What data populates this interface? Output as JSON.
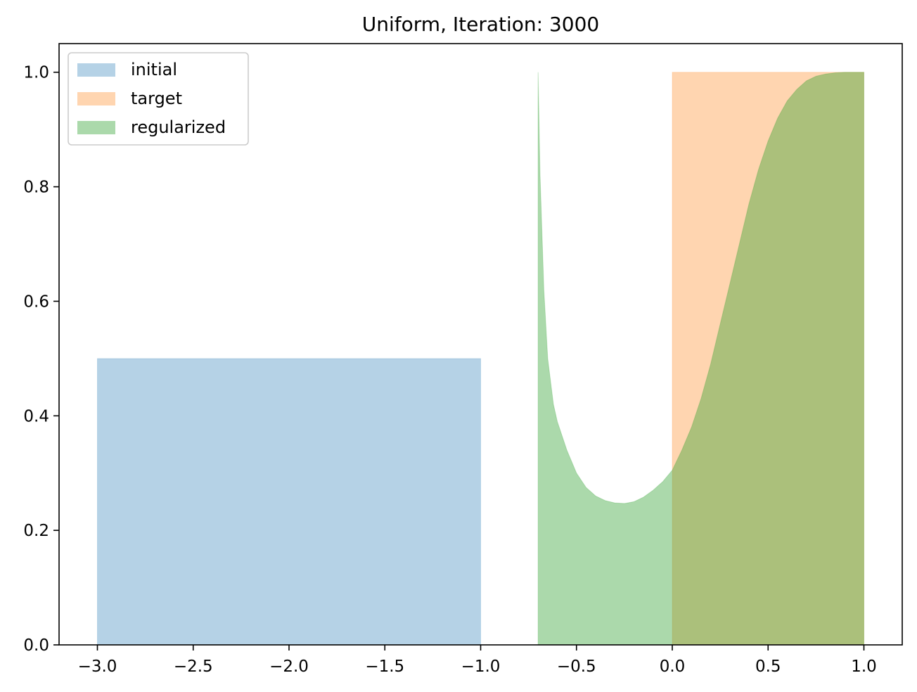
{
  "chart_data": {
    "type": "area",
    "title": "Uniform, Iteration: 3000",
    "xlabel": "",
    "ylabel": "",
    "xlim": [
      -3.2,
      1.2
    ],
    "ylim": [
      0,
      1.05
    ],
    "xticks": [
      -3.0,
      -2.5,
      -2.0,
      -1.5,
      -1.0,
      -0.5,
      0.0,
      0.5,
      1.0
    ],
    "xtick_labels": [
      "−3.0",
      "−2.5",
      "−2.0",
      "−1.5",
      "−1.0",
      "−0.5",
      "0.0",
      "0.5",
      "1.0"
    ],
    "yticks": [
      0.0,
      0.2,
      0.4,
      0.6,
      0.8,
      1.0
    ],
    "ytick_labels": [
      "0.0",
      "0.2",
      "0.4",
      "0.6",
      "0.8",
      "1.0"
    ],
    "grid": false,
    "legend_position": "upper-left",
    "series": [
      {
        "name": "initial",
        "color": "#1f77b4",
        "opacity": 0.33,
        "x": [
          -3.0,
          -3.0,
          -1.0,
          -1.0
        ],
        "y": [
          0.0,
          0.5,
          0.5,
          0.0
        ]
      },
      {
        "name": "target",
        "color": "#ff7f0e",
        "opacity": 0.33,
        "x": [
          0.0,
          0.0,
          1.0,
          1.0
        ],
        "y": [
          0.0,
          1.0,
          1.0,
          0.0
        ]
      },
      {
        "name": "regularized",
        "color": "#2ca02c",
        "opacity": 0.4,
        "x": [
          -0.7,
          -0.7,
          -0.69,
          -0.67,
          -0.65,
          -0.62,
          -0.6,
          -0.55,
          -0.5,
          -0.45,
          -0.4,
          -0.35,
          -0.3,
          -0.25,
          -0.2,
          -0.15,
          -0.1,
          -0.05,
          0.0,
          0.05,
          0.1,
          0.15,
          0.2,
          0.25,
          0.3,
          0.35,
          0.4,
          0.45,
          0.5,
          0.55,
          0.6,
          0.65,
          0.7,
          0.75,
          0.8,
          0.85,
          0.9,
          0.95,
          1.0,
          1.0
        ],
        "y": [
          0.0,
          1.0,
          0.82,
          0.62,
          0.5,
          0.42,
          0.39,
          0.34,
          0.3,
          0.275,
          0.26,
          0.252,
          0.248,
          0.247,
          0.25,
          0.258,
          0.27,
          0.285,
          0.305,
          0.34,
          0.38,
          0.43,
          0.49,
          0.56,
          0.63,
          0.7,
          0.77,
          0.83,
          0.88,
          0.92,
          0.95,
          0.97,
          0.985,
          0.993,
          0.997,
          0.999,
          1.0,
          1.0,
          1.0,
          0.0
        ]
      }
    ]
  }
}
